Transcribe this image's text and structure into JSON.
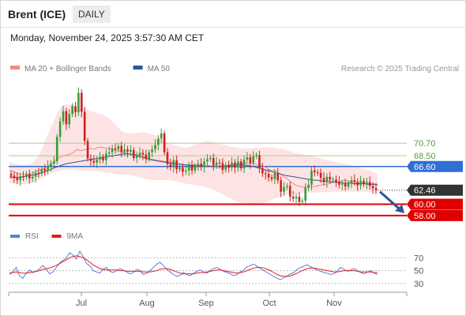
{
  "header": {
    "instrument": "Brent (ICE)",
    "timeframe": "DAILY"
  },
  "timestamp": "Monday, November 24, 2025 3:57:30 AM CET",
  "legend": {
    "price": [
      {
        "label": "MA 20 + Bollinger Bands",
        "color": "#f28b82"
      },
      {
        "label": "MA 50",
        "color": "#2f5597"
      }
    ],
    "indicator": [
      {
        "label": "RSI",
        "color": "#5b7fd6"
      },
      {
        "label": "9MA",
        "color": "#e02020"
      }
    ]
  },
  "attribution": "Research © 2025 Trading Central",
  "colors": {
    "candle_up": "#3a9a3a",
    "candle_down": "#d02020",
    "bollinger_fill": "#fde3e3",
    "ma20": "#f28b82",
    "ma50": "#2f5597",
    "pivot": "#2f6fd6",
    "support": "#e00000",
    "resistance": "#a8d08d",
    "last_price_bg": "#333333",
    "arrow": "#2f5597"
  },
  "chart_data": [
    {
      "type": "candlestick",
      "title": "",
      "xlabel": "",
      "ylabel": "",
      "x_ticks": [
        "Jul",
        "Aug",
        "Sep",
        "Oct",
        "Nov"
      ],
      "ylim": [
        56.6,
        82.5
      ],
      "last_price": 62.46,
      "pivot": 66.6,
      "resistances": [
        70.7,
        68.5
      ],
      "supports": [
        60.0,
        58.0
      ],
      "level_labels": [
        "70.70",
        "68.50",
        "66.60",
        "62.46",
        "60.00",
        "58.00"
      ],
      "ohlc_closes": [
        65.0,
        64.6,
        64.2,
        64.9,
        64.8,
        65.3,
        64.5,
        64.8,
        65.5,
        65.4,
        66.2,
        65.9,
        66.7,
        67.1,
        67.5,
        71.8,
        74.5,
        76.3,
        74.0,
        75.8,
        77.2,
        76.1,
        79.5,
        76.2,
        71.1,
        68.0,
        67.6,
        67.3,
        67.8,
        68.3,
        67.7,
        68.9,
        69.1,
        69.8,
        69.6,
        70.2,
        69.1,
        69.6,
        69.2,
        69.5,
        68.1,
        68.5,
        69.0,
        68.7,
        67.9,
        69.1,
        69.6,
        70.4,
        71.5,
        72.4,
        69.1,
        67.0,
        66.5,
        67.7,
        66.1,
        66.4,
        65.7,
        65.9,
        66.8,
        65.9,
        66.7,
        67.1,
        66.5,
        67.5,
        67.9,
        68.1,
        66.8,
        67.3,
        67.2,
        66.0,
        66.9,
        66.4,
        67.3,
        66.4,
        67.5,
        66.3,
        67.8,
        68.2,
        67.2,
        68.4,
        68.6,
        66.3,
        65.4,
        65.3,
        64.7,
        64.4,
        65.4,
        64.2,
        62.2,
        63.0,
        63.2,
        61.3,
        61.0,
        61.3,
        60.4,
        60.6,
        62.9,
        63.4,
        65.9,
        65.6,
        65.5,
        64.6,
        63.9,
        64.8,
        64.3,
        64.3,
        63.9,
        63.4,
        63.6,
        63.1,
        63.7,
        64.2,
        63.9,
        63.3,
        64.1,
        63.5,
        63.9,
        63.2,
        62.8,
        62.46
      ],
      "ma20": [
        66.0,
        65.8,
        65.5,
        65.3,
        65.2,
        65.2,
        65.3,
        65.5,
        65.8,
        66.0,
        66.2,
        66.5,
        66.9,
        67.4,
        67.9,
        68.2,
        68.5,
        68.6,
        68.8,
        69.1,
        69.6,
        69.4,
        69.5,
        69.6,
        69.8,
        69.6,
        69.9,
        70.0,
        69.9,
        69.8,
        69.7,
        69.5,
        69.4,
        69.2,
        69.0,
        68.9,
        68.7,
        68.6,
        68.4,
        68.3,
        68.2,
        68.0,
        67.9,
        67.8,
        67.7,
        67.6,
        67.5,
        67.4,
        67.3,
        67.2,
        67.1,
        67.0,
        66.9,
        66.9,
        66.9,
        66.9,
        66.8,
        66.8,
        66.7,
        66.8,
        66.7,
        66.7,
        66.6,
        66.7,
        66.7,
        66.8,
        66.9,
        67.0,
        67.1,
        67.1,
        67.2,
        67.1,
        67.2,
        67.0,
        66.9,
        66.7,
        66.4,
        66.0,
        65.9,
        65.8,
        65.4,
        64.9,
        64.6,
        64.1,
        63.6,
        63.3,
        63.1,
        63.0,
        63.0,
        63.0,
        63.1,
        63.2,
        63.3,
        63.4,
        63.5,
        63.7,
        63.8,
        63.9,
        64.0,
        64.2,
        64.1,
        64.0,
        63.9,
        63.8,
        63.7,
        63.6,
        63.6,
        63.6,
        63.5,
        63.5
      ],
      "bollinger_upper": [
        67.5,
        67.2,
        67.0,
        66.9,
        66.9,
        67.0,
        67.4,
        68.2,
        69.5,
        71.2,
        73.0,
        74.5,
        76.0,
        77.0,
        77.5,
        77.5,
        77.3,
        77.1,
        76.9,
        76.7,
        76.4,
        76.2,
        76.0,
        75.8,
        75.4,
        75.0,
        74.3,
        73.5,
        72.8,
        72.5,
        72.5,
        72.4,
        72.5,
        72.6,
        72.6,
        72.4,
        72.2,
        71.8,
        71.4,
        71.0,
        70.7,
        70.4,
        70.2,
        70.0,
        69.9,
        70.0,
        70.3,
        70.6,
        70.8,
        71.0,
        71.0,
        70.9,
        70.7,
        70.5,
        70.3,
        70.1,
        70.0,
        69.9,
        69.8,
        69.8,
        69.8,
        69.8,
        69.9,
        69.9,
        70.0,
        70.0,
        69.9,
        69.8,
        69.7,
        69.5,
        69.3,
        69.0,
        68.9,
        68.8,
        68.6,
        68.5,
        68.3,
        68.2,
        68.0,
        67.8,
        67.6,
        67.5,
        67.3,
        67.2,
        67.1,
        66.9,
        66.7,
        66.5,
        66.3,
        66.1,
        65.9,
        65.6,
        65.4
      ],
      "bollinger_lower": [
        63.7,
        63.6,
        63.5,
        63.5,
        63.5,
        63.6,
        63.8,
        64.1,
        64.5,
        64.9,
        65.3,
        65.6,
        65.8,
        66.0,
        66.0,
        66.0,
        66.0,
        65.9,
        65.9,
        65.9,
        65.9,
        65.8,
        65.8,
        65.7,
        65.5,
        65.5,
        65.4,
        65.3,
        65.2,
        65.2,
        65.1,
        65.0,
        64.8,
        64.6,
        64.4,
        64.3,
        64.2,
        64.2,
        64.2,
        64.2,
        64.2,
        64.1,
        64.0,
        63.8,
        63.6,
        63.5,
        63.4,
        63.3,
        63.2,
        63.0,
        62.8,
        62.5,
        62.2,
        61.9,
        61.5,
        61.1,
        60.7,
        60.4,
        60.2,
        60.0,
        59.9,
        59.8,
        59.9,
        60.1,
        60.3,
        60.6,
        60.9,
        61.2,
        61.4,
        61.6,
        61.8,
        61.9,
        61.9,
        62.0,
        62.0,
        62.0,
        62.0,
        62.1,
        62.1,
        62.1,
        62.1,
        62.2,
        62.2,
        62.2,
        62.2,
        62.2,
        62.2,
        62.2,
        62.2,
        62.2,
        62.2,
        62.2,
        62.2
      ],
      "ma50": [
        64.8,
        64.7,
        64.7,
        64.7,
        64.8,
        64.9,
        65.0,
        65.1,
        65.2,
        65.4,
        65.6,
        65.8,
        66.0,
        66.3,
        66.5,
        66.7,
        66.9,
        67.1,
        67.2,
        67.3,
        67.4,
        67.5,
        67.6,
        67.7,
        67.8,
        67.9,
        68.0,
        68.1,
        68.2,
        68.3,
        68.4,
        68.5,
        68.6,
        68.7,
        68.8,
        68.8,
        68.8,
        68.7,
        68.6,
        68.4,
        68.2,
        68.0,
        67.8,
        67.7,
        67.6,
        67.5,
        67.4,
        67.3,
        67.2,
        67.1,
        67.0,
        67.0,
        66.9,
        66.9,
        66.8,
        66.8,
        66.7,
        66.7,
        66.7,
        66.6,
        66.6,
        66.6,
        66.6,
        66.6,
        66.7,
        66.7,
        66.8,
        66.8,
        66.9,
        66.9,
        66.9,
        66.8,
        66.7,
        66.6,
        66.4,
        66.3,
        66.1,
        65.9,
        65.8,
        65.6,
        65.4,
        65.3,
        65.1,
        65.0,
        64.9,
        64.8,
        64.7,
        64.6,
        64.5,
        64.4,
        64.3,
        64.2,
        64.2,
        64.1,
        64.0,
        64.0,
        63.9,
        63.9,
        63.8,
        63.8,
        63.7,
        63.7,
        63.7,
        63.6,
        63.6,
        63.6,
        63.6,
        63.5,
        63.5,
        63.5,
        63.4
      ],
      "forecast_arrow": {
        "from": 62.2,
        "to": 58.7
      }
    },
    {
      "type": "line",
      "title": "",
      "xlabel": "",
      "ylabel": "",
      "ylim": [
        20,
        90
      ],
      "y_ticks": [
        "70",
        "50",
        "30"
      ],
      "series": [
        {
          "name": "RSI",
          "values": [
            44,
            48,
            55,
            42,
            38,
            46,
            51,
            47,
            49,
            53,
            58,
            52,
            45,
            48,
            55,
            62,
            66,
            70,
            78,
            74,
            68,
            80,
            72,
            61,
            58,
            50,
            48,
            46,
            52,
            55,
            49,
            47,
            50,
            53,
            51,
            48,
            45,
            47,
            52,
            50,
            44,
            46,
            50,
            55,
            60,
            63,
            58,
            52,
            48,
            44,
            41,
            43,
            47,
            44,
            42,
            46,
            49,
            51,
            48,
            46,
            50,
            53,
            55,
            52,
            49,
            47,
            45,
            42,
            44,
            48,
            51,
            56,
            58,
            60,
            57,
            53,
            50,
            47,
            44,
            41,
            38,
            36,
            39,
            42,
            45,
            47,
            52,
            55,
            57,
            59,
            56,
            53,
            51,
            49,
            47,
            46,
            44,
            45,
            50,
            55,
            52,
            49,
            51,
            53,
            50,
            47,
            45,
            48,
            50,
            46,
            44
          ]
        },
        {
          "name": "9MA",
          "values": [
            46,
            47,
            48,
            47,
            46,
            46,
            47,
            48,
            49,
            50,
            52,
            53,
            54,
            56,
            58,
            61,
            64,
            67,
            70,
            72,
            73,
            72,
            70,
            67,
            63,
            59,
            56,
            53,
            52,
            51,
            51,
            51,
            51,
            50,
            50,
            49,
            49,
            49,
            49,
            49,
            48,
            48,
            48,
            49,
            50,
            52,
            53,
            53,
            52,
            50,
            48,
            46,
            45,
            45,
            45,
            45,
            46,
            47,
            47,
            48,
            49,
            50,
            51,
            51,
            50,
            49,
            48,
            47,
            46,
            47,
            48,
            50,
            52,
            54,
            55,
            55,
            54,
            52,
            50,
            47,
            44,
            42,
            41,
            41,
            42,
            44,
            46,
            49,
            51,
            53,
            54,
            54,
            53,
            52,
            51,
            50,
            49,
            48,
            48,
            49,
            50,
            50,
            50,
            50,
            49,
            48,
            48,
            48,
            48,
            47,
            47
          ]
        }
      ]
    }
  ]
}
